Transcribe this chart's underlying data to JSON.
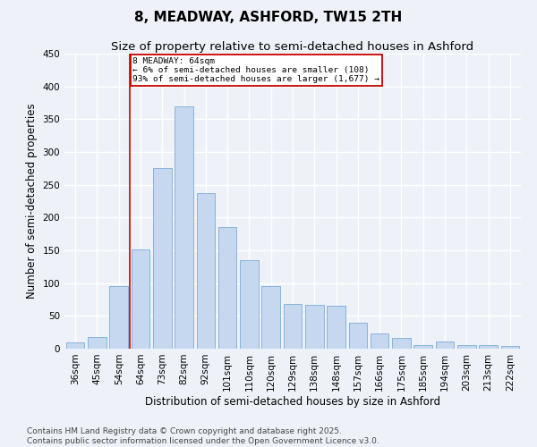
{
  "title": "8, MEADWAY, ASHFORD, TW15 2TH",
  "subtitle": "Size of property relative to semi-detached houses in Ashford",
  "xlabel": "Distribution of semi-detached houses by size in Ashford",
  "ylabel": "Number of semi-detached properties",
  "categories": [
    "36sqm",
    "45sqm",
    "54sqm",
    "64sqm",
    "73sqm",
    "82sqm",
    "92sqm",
    "101sqm",
    "110sqm",
    "120sqm",
    "129sqm",
    "138sqm",
    "148sqm",
    "157sqm",
    "166sqm",
    "175sqm",
    "185sqm",
    "194sqm",
    "203sqm",
    "213sqm",
    "222sqm"
  ],
  "values": [
    10,
    18,
    96,
    152,
    275,
    370,
    237,
    186,
    135,
    95,
    68,
    67,
    65,
    40,
    23,
    16,
    6,
    11,
    5,
    6,
    4
  ],
  "bar_color": "#c5d8f0",
  "bar_edge_color": "#7aadd4",
  "highlight_line_index": 3,
  "annotation_title": "8 MEADWAY: 64sqm",
  "annotation_line1": "← 6% of semi-detached houses are smaller (108)",
  "annotation_line2": "93% of semi-detached houses are larger (1,677) →",
  "annotation_box_color": "#cc0000",
  "ylim": [
    0,
    450
  ],
  "yticks": [
    0,
    50,
    100,
    150,
    200,
    250,
    300,
    350,
    400,
    450
  ],
  "footer1": "Contains HM Land Registry data © Crown copyright and database right 2025.",
  "footer2": "Contains public sector information licensed under the Open Government Licence v3.0.",
  "background_color": "#eef2f8",
  "plot_bg_color": "#eef2f8",
  "grid_color": "#ffffff",
  "title_fontsize": 11,
  "subtitle_fontsize": 9.5,
  "axis_label_fontsize": 8.5,
  "tick_fontsize": 7.5,
  "footer_fontsize": 6.5
}
